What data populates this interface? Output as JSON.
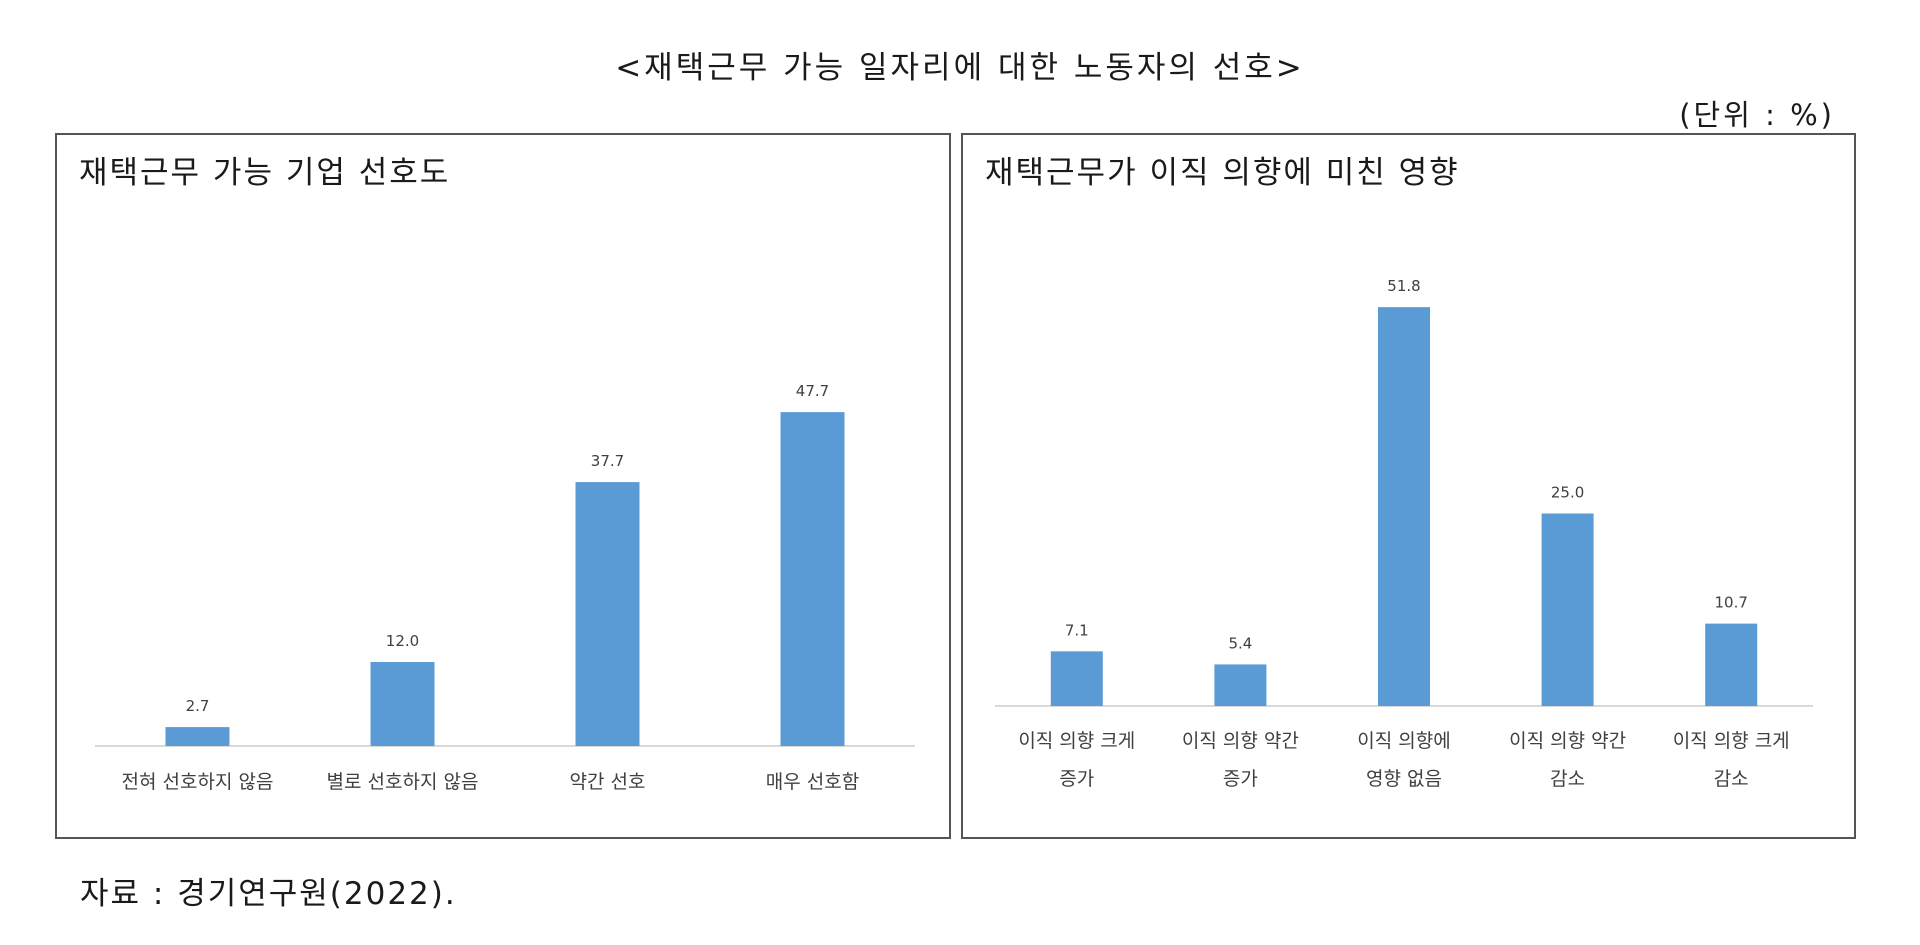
{
  "header": {
    "title": "<재택근무 가능 일자리에 대한 노동자의 선호>",
    "unit": "(단위 : %)"
  },
  "footer": {
    "source": "자료 : 경기연구원(2022)."
  },
  "colors": {
    "bar": "#5b9bd5",
    "axis": "#d9d9d9",
    "border": "#555555"
  },
  "chart_data": [
    {
      "type": "bar",
      "title": "재택근무 가능 기업 선호도",
      "categories": [
        [
          "전혀 선호하지 않음"
        ],
        [
          "별로 선호하지 않음"
        ],
        [
          "약간 선호"
        ],
        [
          "매우 선호함"
        ]
      ],
      "values": [
        2.7,
        12.0,
        37.7,
        47.7
      ],
      "value_labels": [
        "2.7",
        "12.0",
        "37.7",
        "47.7"
      ],
      "ylim": [
        0,
        55
      ],
      "grid": false,
      "legend": "none"
    },
    {
      "type": "bar",
      "title": "재택근무가 이직 의향에 미친 영향",
      "categories": [
        [
          "이직 의향 크게",
          "증가"
        ],
        [
          "이직 의향 약간",
          "증가"
        ],
        [
          "이직 의향에",
          "영향 없음"
        ],
        [
          "이직 의향 약간",
          "감소"
        ],
        [
          "이직 의향 크게",
          "감소"
        ]
      ],
      "values": [
        7.1,
        5.4,
        51.8,
        25.0,
        10.7
      ],
      "value_labels": [
        "7.1",
        "5.4",
        "51.8",
        "25.0",
        "10.7"
      ],
      "ylim": [
        0,
        55
      ],
      "grid": false,
      "legend": "none"
    }
  ]
}
